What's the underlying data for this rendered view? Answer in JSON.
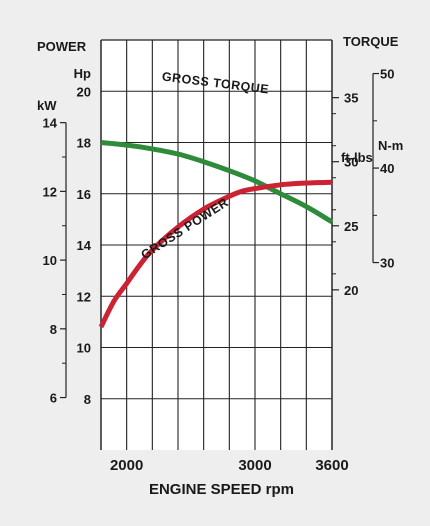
{
  "chart_data": {
    "type": "line",
    "x_axis": {
      "label": "ENGINE SPEED rpm",
      "range": [
        1800,
        3600
      ],
      "ticks": [
        {
          "value": 2000,
          "label": "2000"
        },
        {
          "value": 3000,
          "label": "3000"
        },
        {
          "value": 3600,
          "label": "3600"
        }
      ],
      "gridlines": [
        1800,
        2000,
        2200,
        2400,
        2600,
        2800,
        3000,
        3200,
        3400,
        3600
      ]
    },
    "power_axis": {
      "title": "POWER",
      "hp": {
        "unit": "Hp",
        "range": [
          6,
          22
        ],
        "ticks": [
          "8",
          "10",
          "12",
          "14",
          "16",
          "18",
          "20"
        ]
      },
      "kw": {
        "unit": "kW",
        "range": [
          4.474,
          16.405
        ],
        "ticks": [
          "6",
          "8",
          "10",
          "12",
          "14"
        ]
      }
    },
    "torque_axis": {
      "title": "TORQUE",
      "ftlbs": {
        "unit": "ft-lbs",
        "range": [
          7.5,
          39.5
        ],
        "ticks": [
          "20",
          "25",
          "30",
          "35"
        ]
      },
      "nm": {
        "unit": "N-m",
        "range": [
          10.17,
          53.55
        ],
        "ticks": [
          "30",
          "40",
          "50"
        ]
      }
    },
    "grid": true,
    "series": [
      {
        "name": "GROSS TORQUE",
        "axis": "torque_ftlbs",
        "color": "#2e8b3a",
        "x": [
          1800,
          2000,
          2200,
          2400,
          2600,
          2800,
          3000,
          3200,
          3400,
          3600
        ],
        "y": [
          31.5,
          31.3,
          31.0,
          30.6,
          30.0,
          29.3,
          28.5,
          27.5,
          26.5,
          25.3
        ]
      },
      {
        "name": "GROSS POWER",
        "axis": "power_hp",
        "color": "#cc2233",
        "x": [
          1800,
          1900,
          2000,
          2100,
          2200,
          2400,
          2600,
          2800,
          2900,
          3000,
          3200,
          3400,
          3600
        ],
        "y": [
          10.8,
          11.8,
          12.5,
          13.2,
          13.8,
          14.7,
          15.4,
          15.9,
          16.1,
          16.2,
          16.35,
          16.42,
          16.45
        ]
      }
    ]
  }
}
